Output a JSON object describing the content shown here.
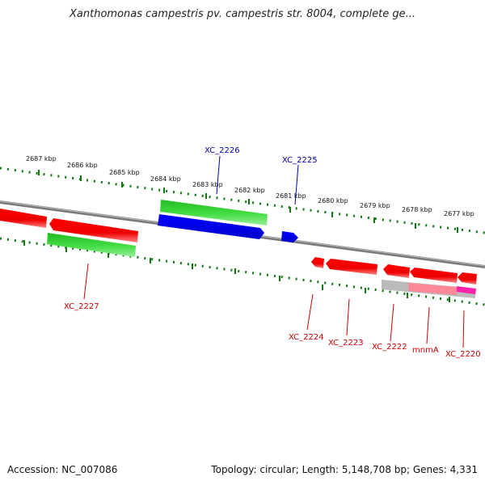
{
  "title": "Xanthomonas campestris pv. campestris str. 8004, complete ge...",
  "footer": {
    "accession": "Accession: NC_007086",
    "summary": "Topology: circular; Length: 5,148,708 bp; Genes: 4,331"
  },
  "ruler": {
    "labels": [
      "2687 kbp",
      "2686 kbp",
      "2685 kbp",
      "2684 kbp",
      "2683 kbp",
      "2682 kbp",
      "2681 kbp",
      "2680 kbp",
      "2679 kbp",
      "2678 kbp",
      "2677 kbp"
    ]
  },
  "genes": {
    "forward": [
      {
        "name": "XC_2226",
        "color": "#0000aa"
      },
      {
        "name": "XC_2225",
        "color": "#0000aa"
      }
    ],
    "reverse": [
      {
        "name": "XC_2227",
        "color": "#cc0000"
      },
      {
        "name": "XC_2224",
        "color": "#cc0000"
      },
      {
        "name": "XC_2223",
        "color": "#cc0000"
      },
      {
        "name": "XC_2222",
        "color": "#cc0000"
      },
      {
        "name": "mnmA",
        "color": "#cc0000"
      },
      {
        "name": "XC_2220",
        "color": "#cc0000"
      }
    ]
  },
  "colors": {
    "cds_forward": "#0000ee",
    "cds_reverse": "#ee0000",
    "gene_track": "#33cc33",
    "backbone": "#888888",
    "tick": "#006600",
    "highlight": "#ff00aa"
  }
}
